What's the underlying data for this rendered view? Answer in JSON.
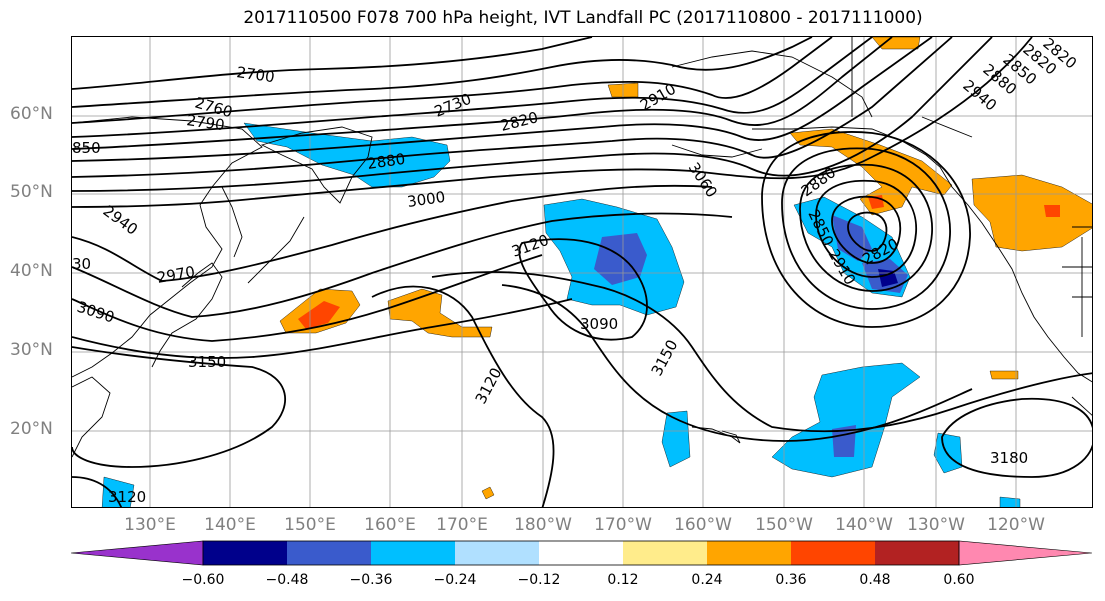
{
  "title": "2017110500 F078 700 hPa height, IVT Landfall PC (2017110800 - 2017111000)",
  "latitude_labels": [
    "60°N",
    "50°N",
    "40°N",
    "30°N",
    "20°N"
  ],
  "longitude_labels": [
    "130°E",
    "140°E",
    "150°E",
    "160°E",
    "170°E",
    "180°W",
    "170°W",
    "160°W",
    "150°W",
    "140°W",
    "130°W",
    "120°W"
  ],
  "contour_labels": [
    "2700",
    "2730",
    "2760",
    "2790",
    "2820",
    "2850",
    "2880",
    "2910",
    "2940",
    "2970",
    "3000",
    "3060",
    "3090",
    "3120",
    "3150",
    "3180",
    "2820",
    "2850",
    "2880",
    "2910",
    "2940",
    "3120",
    "3090",
    "3150",
    "3120",
    "3120",
    "2880",
    "2850",
    "2910",
    "2820",
    "30",
    "850",
    "2910",
    "2940"
  ],
  "colorbar": {
    "tick_labels": [
      "−0.60",
      "−0.48",
      "−0.36",
      "−0.24",
      "−0.12",
      "0.12",
      "0.24",
      "0.36",
      "0.48",
      "0.60"
    ],
    "colors": [
      "#9932cc",
      "#00008b",
      "#3a5bcc",
      "#00bfff",
      "#b0e0ff",
      "#ffffff",
      "#ffec8b",
      "#ffa500",
      "#ff4500",
      "#b22222",
      "#ff88b0"
    ]
  }
}
